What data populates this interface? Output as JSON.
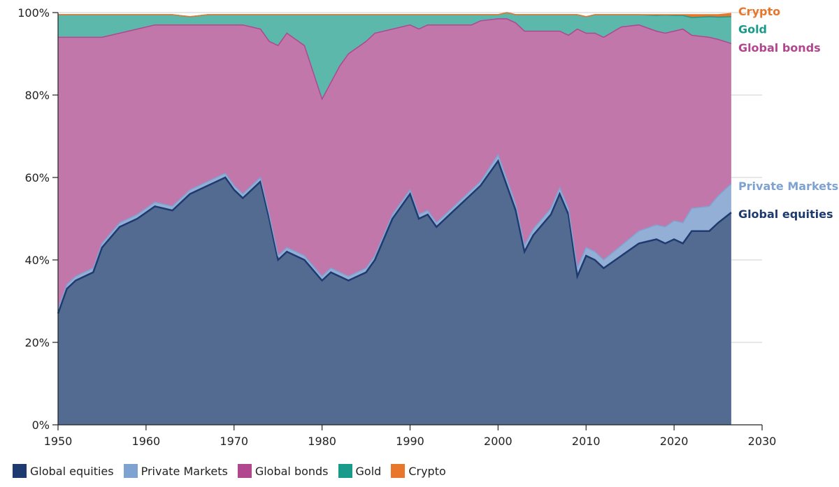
{
  "chart_data": {
    "type": "area",
    "stacked": true,
    "x_unit": "year",
    "xlim": [
      1950,
      2030
    ],
    "ylim": [
      0,
      100
    ],
    "x_ticks": [
      1950,
      1960,
      1970,
      1980,
      1990,
      2000,
      2010,
      2020,
      2030
    ],
    "y_ticks": [
      0,
      20,
      40,
      60,
      80,
      100
    ],
    "y_tick_labels": [
      "0%",
      "20%",
      "40%",
      "60%",
      "80%",
      "100%"
    ],
    "grid": "horizontal",
    "x": [
      1950,
      1951,
      1952,
      1954,
      1955,
      1957,
      1959,
      1961,
      1963,
      1965,
      1967,
      1969,
      1970,
      1971,
      1973,
      1974,
      1975,
      1976,
      1978,
      1980,
      1981,
      1982,
      1983,
      1985,
      1986,
      1988,
      1990,
      1991,
      1992,
      1993,
      1995,
      1997,
      1998,
      2000,
      2001,
      2002,
      2003,
      2004,
      2006,
      2007,
      2008,
      2009,
      2010,
      2011,
      2012,
      2014,
      2016,
      2018,
      2019,
      2020,
      2021,
      2022,
      2024,
      2025,
      2026.5
    ],
    "series": [
      {
        "name": "Global equities",
        "color": "#1e3a6e",
        "values": [
          27,
          33,
          35,
          37,
          43,
          48,
          50,
          53,
          52,
          56,
          58,
          60,
          57,
          55,
          59,
          50,
          40,
          42,
          40,
          35,
          37,
          36,
          35,
          37,
          40,
          50,
          56,
          50,
          51,
          48,
          52,
          56,
          58,
          64,
          58,
          52,
          42,
          46,
          51,
          56,
          51,
          36,
          41,
          40,
          38,
          41,
          44,
          45,
          44,
          45,
          44,
          47,
          47,
          49,
          51.5
        ]
      },
      {
        "name": "Private Markets",
        "color": "#7fa3d1",
        "values": [
          1,
          1,
          1,
          1,
          1,
          1,
          1,
          1,
          1,
          1,
          1,
          1,
          1,
          1,
          1,
          1,
          1,
          1,
          1,
          1,
          1,
          1,
          1,
          1,
          1,
          1,
          1,
          1,
          1,
          1,
          1,
          1,
          1,
          1.5,
          1.5,
          1.5,
          1.5,
          1.5,
          1.5,
          1.5,
          1.5,
          2,
          2,
          2,
          2,
          2.5,
          3,
          3.5,
          4,
          4.5,
          5,
          5.5,
          6,
          6.5,
          7
        ]
      },
      {
        "name": "Global bonds",
        "color": "#b0478f",
        "values": [
          66,
          60,
          58,
          56,
          50,
          46,
          45,
          43,
          44,
          40,
          38,
          36,
          39,
          41,
          36,
          42,
          51,
          52,
          51,
          43,
          45,
          50,
          54,
          55,
          54,
          45,
          40,
          45,
          45,
          48,
          44,
          40,
          39,
          33,
          39,
          44,
          52,
          48,
          43,
          38,
          42,
          58,
          52,
          53,
          54,
          53,
          50,
          47,
          47,
          46,
          47,
          42,
          41,
          38,
          34
        ]
      },
      {
        "name": "Gold",
        "color": "#1a9a8a",
        "values": [
          5.5,
          5.5,
          5.5,
          5.5,
          5.5,
          4.5,
          3.5,
          2.5,
          2.5,
          2,
          2.5,
          2.5,
          2.5,
          2.5,
          3.5,
          6.5,
          7.5,
          4.5,
          7.5,
          20.5,
          16.5,
          12.5,
          9.5,
          6.5,
          4.5,
          3.5,
          2.5,
          3.5,
          2.5,
          2.5,
          2.5,
          2.5,
          1.5,
          1,
          1.5,
          2,
          4,
          4,
          4,
          4,
          5,
          3.5,
          4,
          4.5,
          5.5,
          3,
          2.5,
          3.8,
          4.4,
          3.8,
          3.3,
          4.3,
          5,
          5.4,
          6.5
        ]
      },
      {
        "name": "Crypto",
        "color": "#e8762b",
        "values": [
          0,
          0,
          0,
          0,
          0,
          0,
          0,
          0,
          0,
          0,
          0,
          0,
          0,
          0,
          0,
          0,
          0,
          0,
          0,
          0,
          0,
          0,
          0,
          0,
          0,
          0,
          0,
          0,
          0,
          0,
          0,
          0,
          0,
          0,
          0,
          0,
          0,
          0,
          0,
          0,
          0,
          0,
          0,
          0,
          0,
          0,
          0,
          0.2,
          0.1,
          0.2,
          0.2,
          0.7,
          0.5,
          0.6,
          0.8
        ]
      }
    ],
    "end_labels": [
      {
        "text": "Crypto",
        "color": "#e8762b"
      },
      {
        "text": "Gold",
        "color": "#1a9a8a"
      },
      {
        "text": "Global bonds",
        "color": "#b0478f"
      },
      {
        "text": "Private Markets",
        "color": "#7fa3d1"
      },
      {
        "text": "Global equities",
        "color": "#1e3a6e"
      }
    ],
    "legend": {
      "position": "bottom-left",
      "items": [
        {
          "label": "Global equities",
          "color": "#1e3a6e"
        },
        {
          "label": "Private Markets",
          "color": "#7fa3d1"
        },
        {
          "label": "Global bonds",
          "color": "#b0478f"
        },
        {
          "label": "Gold",
          "color": "#1a9a8a"
        },
        {
          "label": "Crypto",
          "color": "#e8762b"
        }
      ]
    }
  }
}
